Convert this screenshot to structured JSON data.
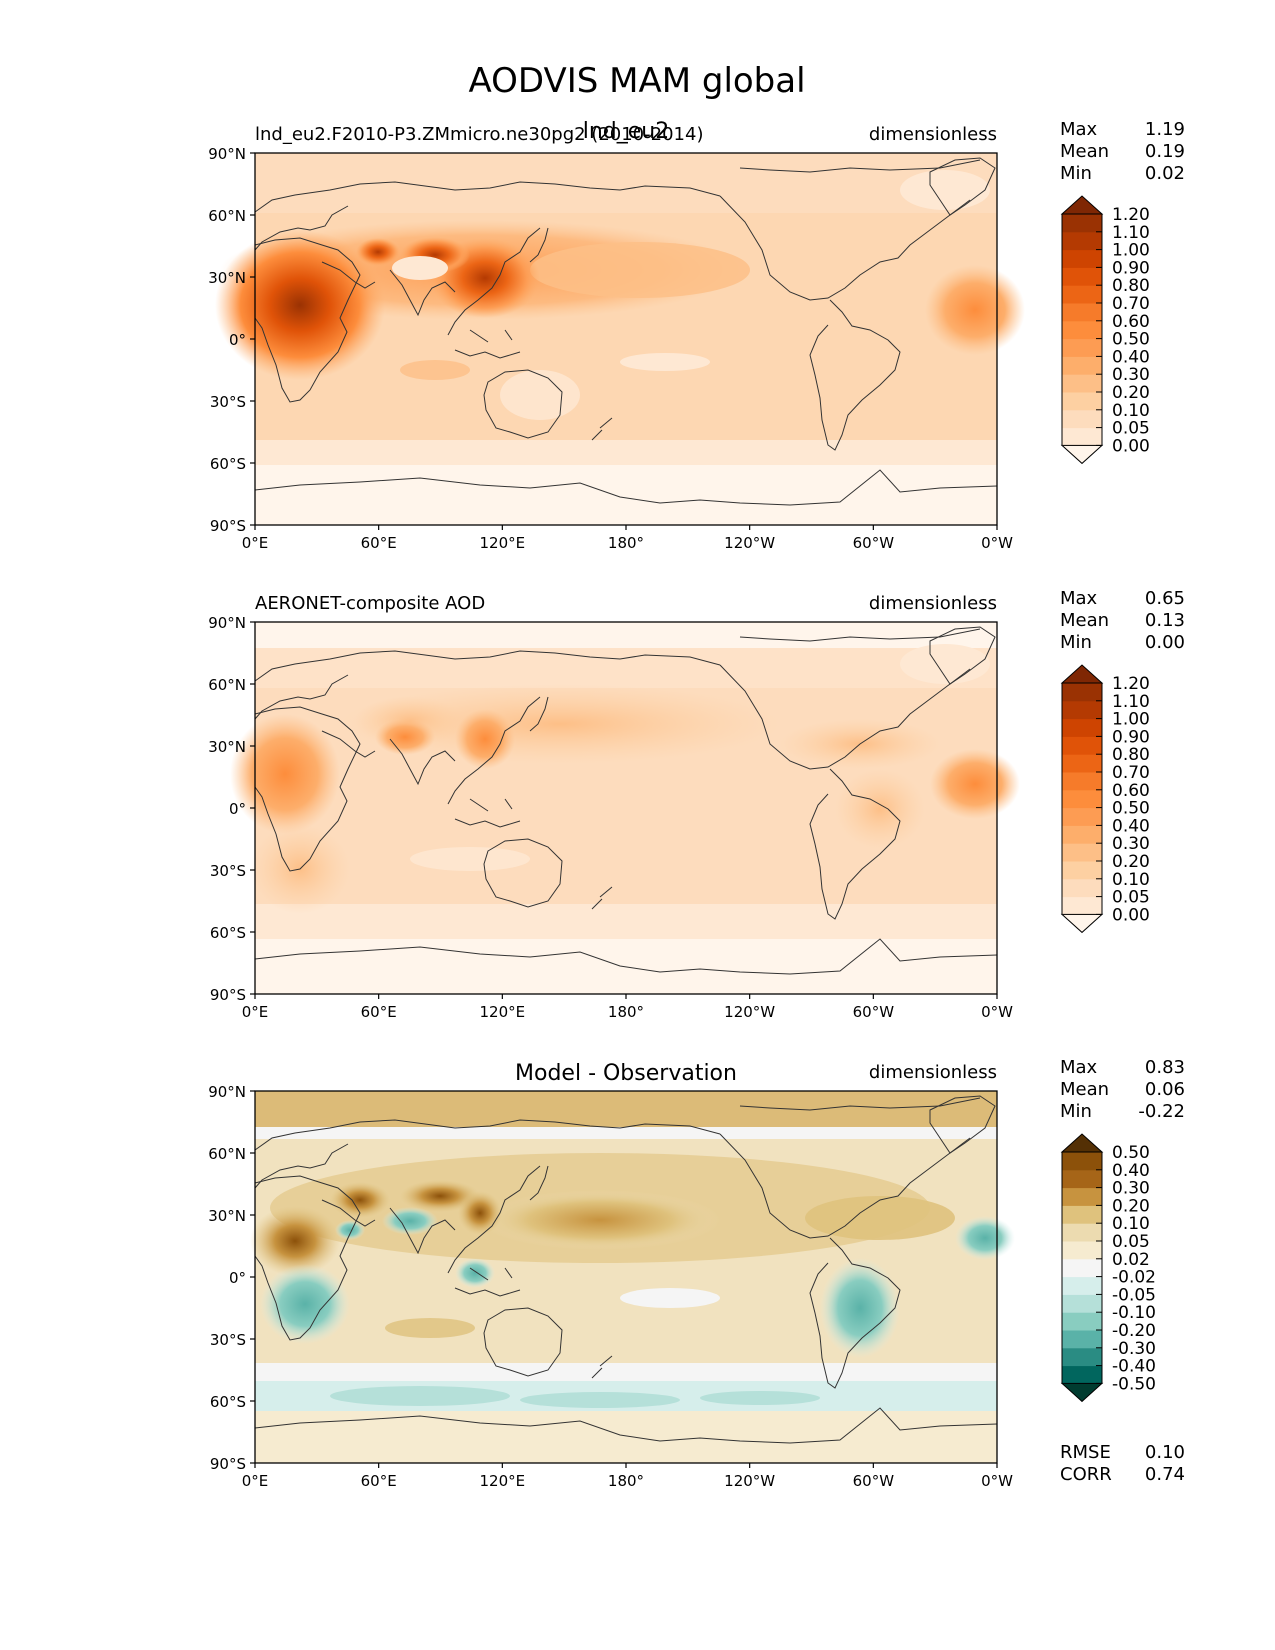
{
  "title": "AODVIS MAM global",
  "colors": {
    "orange_scale": [
      "#fff5eb",
      "#fee8d3",
      "#fddcbd",
      "#fdd0a2",
      "#fdbf87",
      "#fdae6b",
      "#fd9c53",
      "#fd8d3c",
      "#f67b2a",
      "#ec6515",
      "#e05308",
      "#ce4401",
      "#b43a02",
      "#9a3203",
      "#7f2704"
    ],
    "diff_scale": [
      "#003c30",
      "#01665e",
      "#2a8c83",
      "#5ab2a8",
      "#89cdc0",
      "#b5e0d9",
      "#d6eeeb",
      "#f5f5f5",
      "#f6ebd0",
      "#ecdbb0",
      "#dfc27d",
      "#c7933f",
      "#a66518",
      "#8c510a",
      "#543005"
    ],
    "ocean_base": "#fdd9b6",
    "coast": "#333333"
  },
  "panels": [
    {
      "title_left": "lnd_eu2.F2010-P3.ZMmicro.ne30pg2 (2010-2014)",
      "title_center": "lnd_eu2",
      "units": "dimensionless",
      "stats": {
        "max_label": "Max",
        "max": "1.19",
        "mean_label": "Mean",
        "mean": "0.19",
        "min_label": "Min",
        "min": "0.02"
      },
      "colorbar_levels": [
        "0.00",
        "0.05",
        "0.10",
        "0.20",
        "0.30",
        "0.40",
        "0.50",
        "0.60",
        "0.70",
        "0.80",
        "0.90",
        "1.00",
        "1.10",
        "1.20"
      ]
    },
    {
      "title_left": "AERONET-composite AOD",
      "title_center": "",
      "units": "dimensionless",
      "stats": {
        "max_label": "Max",
        "max": "0.65",
        "mean_label": "Mean",
        "mean": "0.13",
        "min_label": "Min",
        "min": "0.00"
      },
      "colorbar_levels": [
        "0.00",
        "0.05",
        "0.10",
        "0.20",
        "0.30",
        "0.40",
        "0.50",
        "0.60",
        "0.70",
        "0.80",
        "0.90",
        "1.00",
        "1.10",
        "1.20"
      ]
    },
    {
      "title_left": "",
      "title_center": "Model - Observation",
      "units": "dimensionless",
      "stats": {
        "max_label": "Max",
        "max": "0.83",
        "mean_label": "Mean",
        "mean": "0.06",
        "min_label": "Min",
        "min": "-0.22"
      },
      "colorbar_levels": [
        "-0.50",
        "-0.40",
        "-0.30",
        "-0.20",
        "-0.10",
        "-0.05",
        "-0.02",
        "0.02",
        "0.05",
        "0.10",
        "0.20",
        "0.30",
        "0.40",
        "0.50"
      ],
      "rmse_label": "RMSE",
      "rmse": "0.10",
      "corr_label": "CORR",
      "corr": "0.74"
    }
  ],
  "lat_ticks": [
    "90°N",
    "60°N",
    "30°N",
    "0°",
    "30°S",
    "60°S",
    "90°S"
  ],
  "lon_ticks": [
    "0°E",
    "60°E",
    "120°E",
    "180°",
    "120°W",
    "60°W",
    "0°W"
  ]
}
